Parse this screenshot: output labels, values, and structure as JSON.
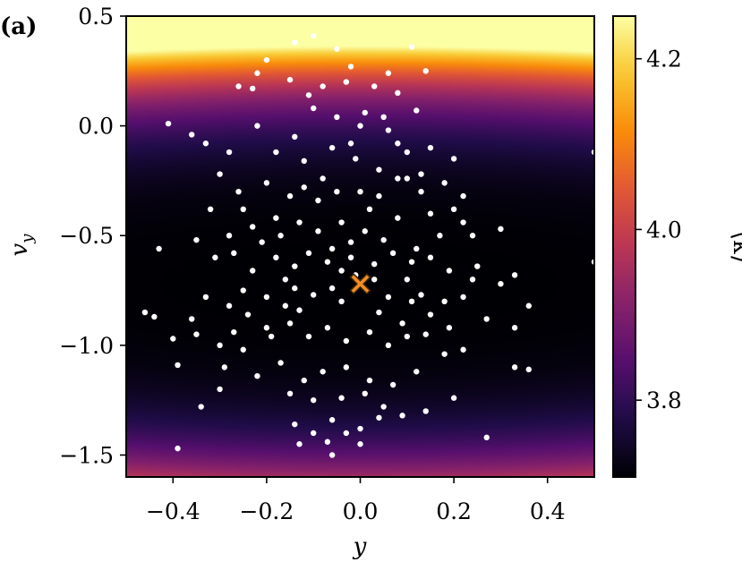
{
  "chart_data": {
    "type": "heatmap",
    "panel_label": "(a)",
    "xlabel": "y",
    "ylabel_main": "v",
    "ylabel_sub": "y",
    "xlim": [
      -0.5,
      0.5
    ],
    "ylim": [
      -1.6,
      0.5
    ],
    "x_ticks": [
      {
        "value": -0.4,
        "label": "−0.4"
      },
      {
        "value": -0.2,
        "label": "−0.2"
      },
      {
        "value": 0.0,
        "label": "0.0"
      },
      {
        "value": 0.2,
        "label": "0.2"
      },
      {
        "value": 0.4,
        "label": "0.4"
      }
    ],
    "y_ticks": [
      {
        "value": 0.5,
        "label": "0.5"
      },
      {
        "value": 0.0,
        "label": "0.0"
      },
      {
        "value": -0.5,
        "label": "−0.5"
      },
      {
        "value": -1.0,
        "label": "−1.0"
      },
      {
        "value": -1.5,
        "label": "−1.5"
      }
    ],
    "colorbar": {
      "label": "⟨k⟩",
      "min": 3.71,
      "max": 4.25,
      "colormap": "inferno",
      "ticks": [
        {
          "value": 3.8,
          "label": "3.8"
        },
        {
          "value": 4.0,
          "label": "4.0"
        },
        {
          "value": 4.2,
          "label": "4.2"
        }
      ]
    },
    "field": {
      "minimum_at": [
        0.0,
        -0.72
      ],
      "value_at_minimum": 3.71,
      "corner_value_top_left": 4.15,
      "corner_value_bottom_right": 4.12
    },
    "optimum_marker": {
      "x": 0.0,
      "y": -0.72,
      "color": "#f28c28",
      "shape": "x"
    },
    "points_color": "#ffffff",
    "points": [
      [
        -0.1,
        0.41
      ],
      [
        -0.14,
        0.38
      ],
      [
        -0.2,
        0.3
      ],
      [
        0.11,
        0.36
      ],
      [
        0.14,
        0.25
      ],
      [
        -0.05,
        0.35
      ],
      [
        -0.02,
        0.27
      ],
      [
        -0.26,
        0.18
      ],
      [
        -0.23,
        0.17
      ],
      [
        -0.22,
        0.24
      ],
      [
        -0.15,
        0.21
      ],
      [
        -0.11,
        0.14
      ],
      [
        -0.08,
        0.18
      ],
      [
        -0.03,
        0.2
      ],
      [
        0.03,
        0.18
      ],
      [
        0.06,
        0.24
      ],
      [
        0.08,
        0.15
      ],
      [
        0.01,
        0.06
      ],
      [
        -0.05,
        0.04
      ],
      [
        -0.14,
        -0.05
      ],
      [
        -0.02,
        -0.08
      ],
      [
        0.12,
        0.07
      ],
      [
        -0.41,
        0.01
      ],
      [
        -0.36,
        -0.04
      ],
      [
        -0.33,
        -0.08
      ],
      [
        -0.22,
        0.0
      ],
      [
        -0.18,
        -0.12
      ],
      [
        -0.12,
        -0.16
      ],
      [
        -0.06,
        -0.1
      ],
      [
        0.04,
        -0.2
      ],
      [
        0.1,
        -0.24
      ],
      [
        0.05,
        0.04
      ],
      [
        -0.28,
        -0.12
      ],
      [
        -0.3,
        -0.22
      ],
      [
        -0.26,
        -0.3
      ],
      [
        -0.2,
        -0.26
      ],
      [
        -0.15,
        -0.32
      ],
      [
        -0.12,
        -0.28
      ],
      [
        -0.09,
        -0.34
      ],
      [
        -0.05,
        -0.3
      ],
      [
        0.0,
        -0.3
      ],
      [
        0.04,
        -0.32
      ],
      [
        0.08,
        -0.24
      ],
      [
        0.13,
        -0.22
      ],
      [
        0.18,
        -0.26
      ],
      [
        0.22,
        -0.32
      ],
      [
        0.2,
        -0.15
      ],
      [
        0.1,
        -0.12
      ],
      [
        0.15,
        -0.4
      ],
      [
        0.22,
        -0.44
      ],
      [
        0.17,
        -0.5
      ],
      [
        0.12,
        -0.56
      ],
      [
        0.05,
        -0.52
      ],
      [
        0.01,
        -0.48
      ],
      [
        -0.04,
        -0.44
      ],
      [
        -0.09,
        -0.48
      ],
      [
        -0.13,
        -0.44
      ],
      [
        -0.18,
        -0.42
      ],
      [
        -0.23,
        -0.46
      ],
      [
        -0.28,
        -0.5
      ],
      [
        -0.32,
        -0.38
      ],
      [
        -0.35,
        -0.52
      ],
      [
        -0.31,
        -0.6
      ],
      [
        -0.27,
        -0.58
      ],
      [
        -0.23,
        -0.66
      ],
      [
        -0.18,
        -0.6
      ],
      [
        -0.14,
        -0.64
      ],
      [
        -0.11,
        -0.58
      ],
      [
        -0.07,
        -0.62
      ],
      [
        -0.02,
        -0.6
      ],
      [
        0.03,
        -0.63
      ],
      [
        0.07,
        -0.58
      ],
      [
        0.11,
        -0.62
      ],
      [
        0.15,
        -0.6
      ],
      [
        0.19,
        -0.66
      ],
      [
        0.24,
        -0.7
      ],
      [
        0.3,
        -0.72
      ],
      [
        0.33,
        -0.68
      ],
      [
        0.36,
        -0.82
      ],
      [
        0.33,
        -0.92
      ],
      [
        0.27,
        -0.88
      ],
      [
        0.22,
        -0.78
      ],
      [
        0.18,
        -0.8
      ],
      [
        0.13,
        -0.77
      ],
      [
        0.1,
        -0.7
      ],
      [
        0.06,
        -0.78
      ],
      [
        0.04,
        -0.85
      ],
      [
        -0.04,
        -0.8
      ],
      [
        -0.06,
        -0.74
      ],
      [
        -0.1,
        -0.77
      ],
      [
        -0.14,
        -0.74
      ],
      [
        -0.16,
        -0.82
      ],
      [
        -0.2,
        -0.78
      ],
      [
        -0.25,
        -0.75
      ],
      [
        -0.28,
        -0.82
      ],
      [
        -0.33,
        -0.78
      ],
      [
        -0.36,
        -0.88
      ],
      [
        -0.44,
        -0.87
      ],
      [
        -0.46,
        -0.85
      ],
      [
        -0.4,
        -0.97
      ],
      [
        -0.35,
        -0.95
      ],
      [
        -0.3,
        -1.0
      ],
      [
        -0.25,
        -1.02
      ],
      [
        -0.2,
        -0.92
      ],
      [
        -0.15,
        -0.9
      ],
      [
        -0.11,
        -0.96
      ],
      [
        -0.07,
        -0.92
      ],
      [
        -0.03,
        -0.98
      ],
      [
        0.02,
        -0.94
      ],
      [
        0.06,
        -1.0
      ],
      [
        0.1,
        -0.96
      ],
      [
        0.14,
        -0.95
      ],
      [
        0.18,
        -1.04
      ],
      [
        0.22,
        -1.02
      ],
      [
        0.12,
        -1.12
      ],
      [
        0.07,
        -1.18
      ],
      [
        0.02,
        -1.16
      ],
      [
        -0.03,
        -1.1
      ],
      [
        -0.08,
        -1.12
      ],
      [
        -0.12,
        -1.16
      ],
      [
        -0.17,
        -1.08
      ],
      [
        -0.22,
        -1.14
      ],
      [
        -0.3,
        -1.2
      ],
      [
        -0.34,
        -1.28
      ],
      [
        -0.39,
        -1.09
      ],
      [
        -0.29,
        -1.1
      ],
      [
        -0.15,
        -1.22
      ],
      [
        -0.1,
        -1.25
      ],
      [
        -0.04,
        -1.24
      ],
      [
        0.01,
        -1.22
      ],
      [
        0.05,
        -1.28
      ],
      [
        0.09,
        -1.32
      ],
      [
        0.14,
        -1.3
      ],
      [
        0.2,
        -1.24
      ],
      [
        -0.06,
        -1.34
      ],
      [
        0.0,
        -1.38
      ],
      [
        0.04,
        -1.33
      ],
      [
        -0.14,
        -1.36
      ],
      [
        -0.1,
        -1.4
      ],
      [
        -0.07,
        -1.44
      ],
      [
        0.0,
        -1.45
      ],
      [
        -0.03,
        -1.4
      ],
      [
        -0.13,
        -1.45
      ],
      [
        -0.06,
        -1.5
      ],
      [
        0.27,
        -1.42
      ],
      [
        -0.39,
        -1.47
      ],
      [
        0.33,
        -1.1
      ],
      [
        0.36,
        -1.11
      ],
      [
        0.5,
        -0.12
      ],
      [
        0.5,
        -0.62
      ],
      [
        -0.43,
        -0.56
      ],
      [
        0.24,
        -0.5
      ],
      [
        0.3,
        -0.47
      ],
      [
        0.15,
        -0.1
      ],
      [
        0.06,
        -0.02
      ],
      [
        -0.01,
        -0.15
      ],
      [
        -0.08,
        -0.24
      ],
      [
        0.02,
        -0.38
      ],
      [
        0.08,
        -0.42
      ],
      [
        -0.17,
        -0.5
      ],
      [
        -0.21,
        -0.53
      ],
      [
        0.11,
        -0.8
      ],
      [
        0.15,
        -0.86
      ],
      [
        0.09,
        -0.9
      ],
      [
        -0.01,
        -0.68
      ],
      [
        0.03,
        -0.7
      ],
      [
        -0.04,
        -0.66
      ],
      [
        -0.13,
        -0.84
      ],
      [
        -0.24,
        -0.86
      ],
      [
        -0.27,
        -0.94
      ],
      [
        0.19,
        -0.92
      ],
      [
        0.25,
        -0.64
      ],
      [
        0.2,
        -0.38
      ],
      [
        -0.02,
        -0.53
      ],
      [
        -0.06,
        -0.56
      ],
      [
        -0.16,
        -0.7
      ],
      [
        -0.19,
        -0.96
      ],
      [
        0.08,
        -0.08
      ],
      [
        -0.25,
        -0.38
      ],
      [
        -0.1,
        0.08
      ],
      [
        0.0,
        0.0
      ],
      [
        0.13,
        -0.3
      ]
    ]
  }
}
